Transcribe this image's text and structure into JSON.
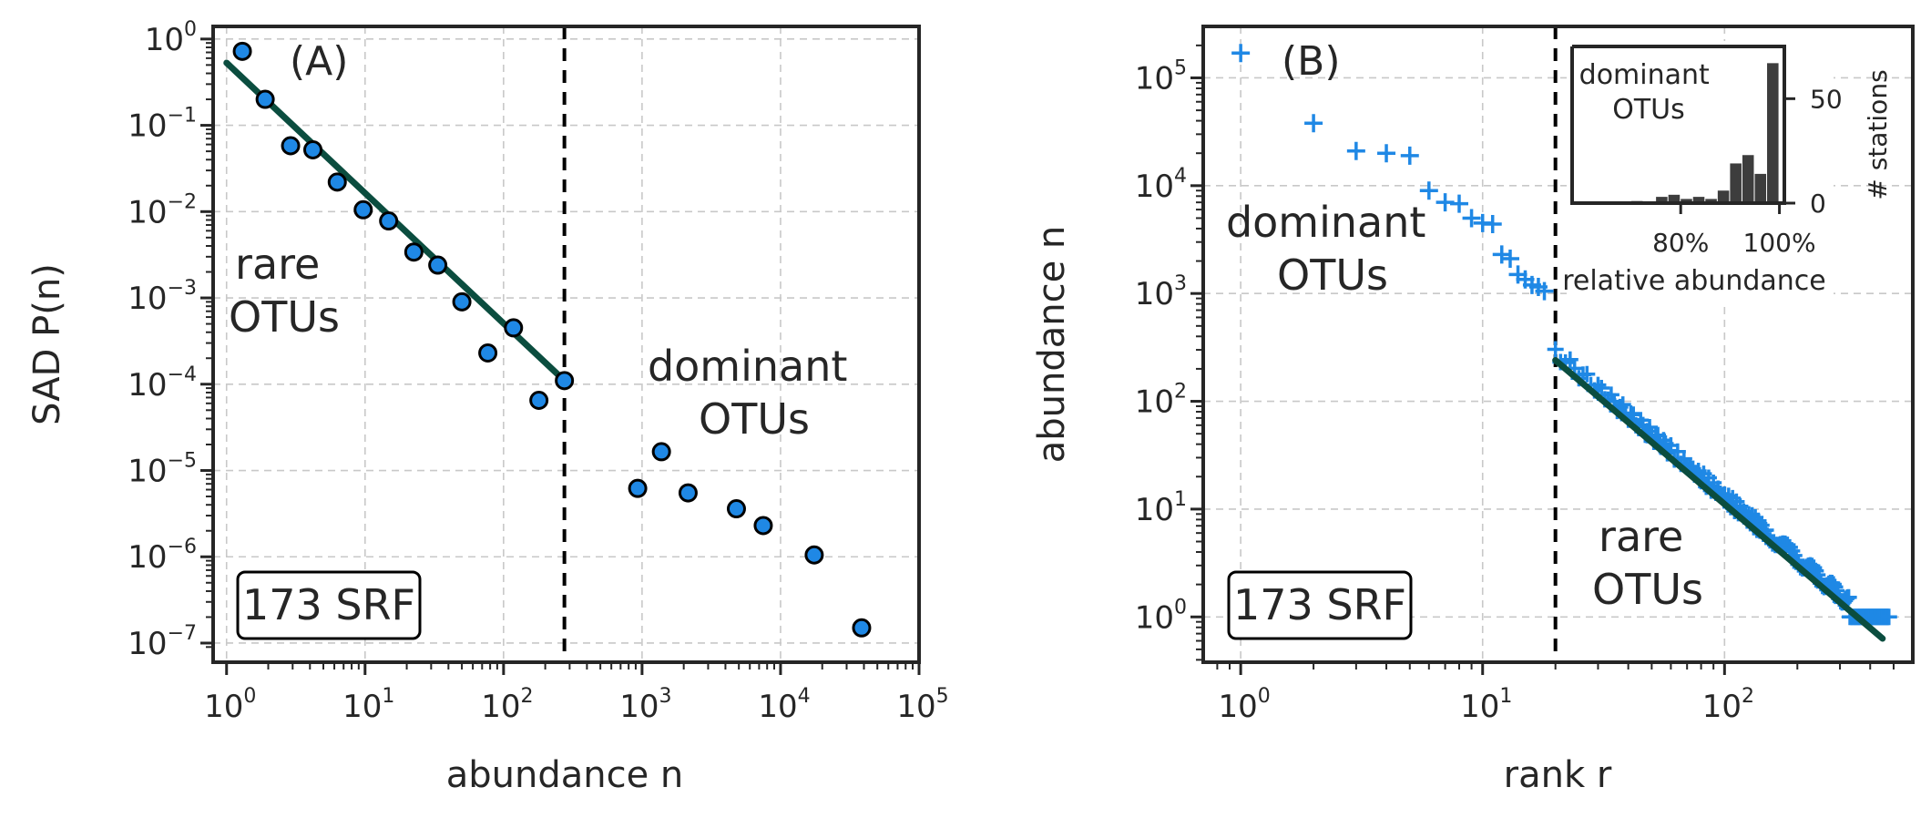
{
  "chart_data": [
    {
      "panel": "(A)",
      "type": "scatter",
      "xscale": "log",
      "yscale": "log",
      "xlabel": "abundance n",
      "ylabel": "SAD P(n)",
      "xlim": [
        0.8,
        100000
      ],
      "ylim": [
        6e-08,
        1.4
      ],
      "x_ticks": [
        "1",
        "10",
        "100",
        "1000",
        "10000",
        "100000"
      ],
      "x_tick_exponents": [
        "0",
        "1",
        "2",
        "3",
        "4",
        "5"
      ],
      "y_ticks": [
        1,
        0.1,
        0.01,
        0.001,
        0.0001,
        1e-05,
        1e-06,
        1e-07
      ],
      "y_tick_exponents": [
        "0",
        "−1",
        "−2",
        "−3",
        "−4",
        "−5",
        "−6",
        "−7"
      ],
      "tick_base": "10",
      "grid": true,
      "points": [
        {
          "x": 1.3,
          "y": 0.72
        },
        {
          "x": 1.9,
          "y": 0.2
        },
        {
          "x": 2.9,
          "y": 0.058
        },
        {
          "x": 4.2,
          "y": 0.052
        },
        {
          "x": 6.3,
          "y": 0.022
        },
        {
          "x": 9.7,
          "y": 0.0105
        },
        {
          "x": 14.8,
          "y": 0.0078
        },
        {
          "x": 22.5,
          "y": 0.0034
        },
        {
          "x": 33.5,
          "y": 0.0024
        },
        {
          "x": 50,
          "y": 0.0009
        },
        {
          "x": 77,
          "y": 0.00023
        },
        {
          "x": 118,
          "y": 0.00045
        },
        {
          "x": 180,
          "y": 6.5e-05
        },
        {
          "x": 275,
          "y": 0.00011
        },
        {
          "x": 930,
          "y": 6.2e-06
        },
        {
          "x": 1380,
          "y": 1.65e-05
        },
        {
          "x": 2150,
          "y": 5.5e-06
        },
        {
          "x": 4800,
          "y": 3.6e-06
        },
        {
          "x": 7500,
          "y": 2.3e-06
        },
        {
          "x": 17500,
          "y": 1.05e-06
        },
        {
          "x": 38500,
          "y": 1.5e-07
        }
      ],
      "fit_line": {
        "x": [
          1,
          275
        ],
        "y": [
          0.53,
          0.00011
        ]
      },
      "threshold_x": 275,
      "annotations": {
        "rare": [
          "rare",
          "OTUs"
        ],
        "dominant": [
          "dominant",
          "OTUs"
        ],
        "box": "173 SRF"
      },
      "colors": {
        "points": "#1f88e5",
        "edge": "#000000",
        "fit": "#0b4d3f",
        "threshold": "#000000"
      }
    },
    {
      "panel": "(B)",
      "type": "scatter",
      "xscale": "log",
      "yscale": "log",
      "xlabel": "rank r",
      "ylabel": "abundance n",
      "xlim": [
        0.7,
        600
      ],
      "ylim": [
        0.38,
        300000
      ],
      "x_ticks": [
        "1",
        "10",
        "100"
      ],
      "x_tick_exponents": [
        "0",
        "1",
        "2"
      ],
      "y_ticks": [
        1,
        10,
        100,
        1000,
        10000,
        100000
      ],
      "y_tick_exponents": [
        "0",
        "1",
        "2",
        "3",
        "4",
        "5"
      ],
      "tick_base": "10",
      "grid": true,
      "dominant_points": [
        {
          "x": 1,
          "y": 170000
        },
        {
          "x": 2,
          "y": 38000
        },
        {
          "x": 3,
          "y": 21000
        },
        {
          "x": 4,
          "y": 20000
        },
        {
          "x": 5,
          "y": 19000
        },
        {
          "x": 6,
          "y": 9000
        },
        {
          "x": 7,
          "y": 7000
        },
        {
          "x": 8,
          "y": 6800
        },
        {
          "x": 9,
          "y": 5000
        },
        {
          "x": 10,
          "y": 4500
        },
        {
          "x": 11,
          "y": 4400
        },
        {
          "x": 12,
          "y": 2300
        },
        {
          "x": 13,
          "y": 2100
        },
        {
          "x": 14,
          "y": 1500
        },
        {
          "x": 15,
          "y": 1350
        },
        {
          "x": 16,
          "y": 1200
        },
        {
          "x": 17,
          "y": 1150
        },
        {
          "x": 18,
          "y": 1050
        }
      ],
      "rare_series": {
        "x_start": 20,
        "y_start": 285,
        "x_end": 480,
        "y_end": 0.65,
        "plateau_y": 1,
        "plateau_from_x": 330
      },
      "fit_line": {
        "x": [
          20,
          450
        ],
        "y": [
          240,
          0.63
        ]
      },
      "threshold_x": 20,
      "annotations": {
        "rare": [
          "rare",
          "OTUs"
        ],
        "dominant": [
          "dominant",
          "OTUs"
        ],
        "box": "173 SRF"
      },
      "inset": {
        "type": "bar",
        "title": [
          "dominant",
          "OTUs"
        ],
        "xlabel": "relative abundance",
        "ylabel": "# stations",
        "x_ticks": [
          "80%",
          "100%"
        ],
        "y_ticks": [
          "0",
          "50"
        ],
        "xlim": [
          0.58,
          1.01
        ],
        "ylim": [
          0,
          75
        ],
        "bins": [
          0.7,
          0.725,
          0.75,
          0.775,
          0.8,
          0.825,
          0.85,
          0.875,
          0.9,
          0.925,
          0.95,
          0.975
        ],
        "values": [
          1,
          0,
          3,
          4,
          2,
          3,
          2,
          6,
          19,
          23,
          14,
          67
        ]
      },
      "colors": {
        "points": "#1f88e5",
        "fit": "#0b4d3f",
        "threshold": "#000000",
        "inset_bars": "#3d3d3d"
      }
    }
  ]
}
